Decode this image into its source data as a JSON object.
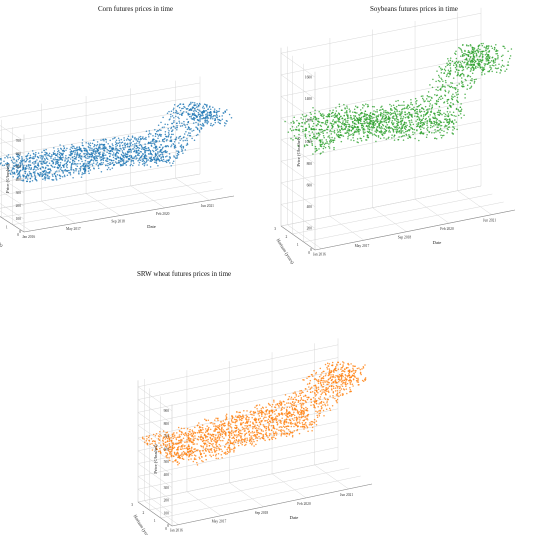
{
  "chart_data": [
    {
      "type": "scatter",
      "title": "Corn futures prices in time",
      "xlabel": "Date",
      "ylabel": "Horizon (years)",
      "zlabel": "Price (¢/bushel)",
      "x_ticks": [
        "Jan 2016",
        "May 2017",
        "Sep 2018",
        "Feb 2020",
        "Jun 2021"
      ],
      "y_ticks": [
        "0",
        "1",
        "2",
        "3"
      ],
      "z_ticks": [
        "0",
        "100",
        "200",
        "300",
        "400",
        "500",
        "600",
        "700"
      ],
      "zlim": [
        0,
        750
      ],
      "color": "#1f77b4",
      "series_profile": {
        "date_range": [
          "2016-01",
          "2022-03"
        ],
        "horizon_range": [
          0,
          3
        ],
        "price_by_year": [
          {
            "date": "2016-01",
            "price": 380
          },
          {
            "date": "2017-01",
            "price": 370
          },
          {
            "date": "2018-01",
            "price": 380
          },
          {
            "date": "2019-01",
            "price": 390
          },
          {
            "date": "2020-06",
            "price": 340
          },
          {
            "date": "2021-01",
            "price": 450
          },
          {
            "date": "2021-06",
            "price": 620
          },
          {
            "date": "2022-01",
            "price": 600
          }
        ]
      }
    },
    {
      "type": "scatter",
      "title": "Soybeans futures prices in time",
      "xlabel": "Date",
      "ylabel": "Horizon (years)",
      "zlabel": "Price (¢/bushel)",
      "x_ticks": [
        "Jan 2016",
        "May 2017",
        "Sep 2018",
        "Feb 2020",
        "Jun 2021"
      ],
      "y_ticks": [
        "0",
        "1",
        "2",
        "3"
      ],
      "z_ticks": [
        "0",
        "200",
        "400",
        "600",
        "800",
        "1000",
        "1200",
        "1400",
        "1600"
      ],
      "zlim": [
        0,
        1650
      ],
      "color": "#2ca02c",
      "series_profile": {
        "date_range": [
          "2016-01",
          "2022-03"
        ],
        "horizon_range": [
          0,
          3
        ],
        "price_by_year": [
          {
            "date": "2016-01",
            "price": 900
          },
          {
            "date": "2017-01",
            "price": 1000
          },
          {
            "date": "2018-01",
            "price": 960
          },
          {
            "date": "2019-01",
            "price": 880
          },
          {
            "date": "2020-06",
            "price": 870
          },
          {
            "date": "2021-01",
            "price": 1300
          },
          {
            "date": "2021-06",
            "price": 1450
          },
          {
            "date": "2022-01",
            "price": 1400
          }
        ]
      }
    },
    {
      "type": "scatter",
      "title": "SRW wheat futures prices in time",
      "xlabel": "Date",
      "ylabel": "Horizon (years)",
      "zlabel": "Price (¢/bushel)",
      "x_ticks": [
        "Jan 2016",
        "May 2017",
        "Sep 2018",
        "Feb 2020",
        "Jun 2021"
      ],
      "y_ticks": [
        "0",
        "1",
        "2",
        "3"
      ],
      "z_ticks": [
        "0",
        "100",
        "200",
        "300",
        "400",
        "500",
        "600",
        "700",
        "800",
        "900"
      ],
      "zlim": [
        0,
        950
      ],
      "color": "#ff7f0e",
      "series_profile": {
        "date_range": [
          "2016-01",
          "2022-03"
        ],
        "horizon_range": [
          0,
          3
        ],
        "price_by_year": [
          {
            "date": "2016-01",
            "price": 500
          },
          {
            "date": "2017-01",
            "price": 470
          },
          {
            "date": "2018-01",
            "price": 500
          },
          {
            "date": "2019-01",
            "price": 530
          },
          {
            "date": "2020-06",
            "price": 560
          },
          {
            "date": "2021-01",
            "price": 680
          },
          {
            "date": "2021-06",
            "price": 800
          },
          {
            "date": "2022-01",
            "price": 850
          }
        ]
      }
    }
  ]
}
